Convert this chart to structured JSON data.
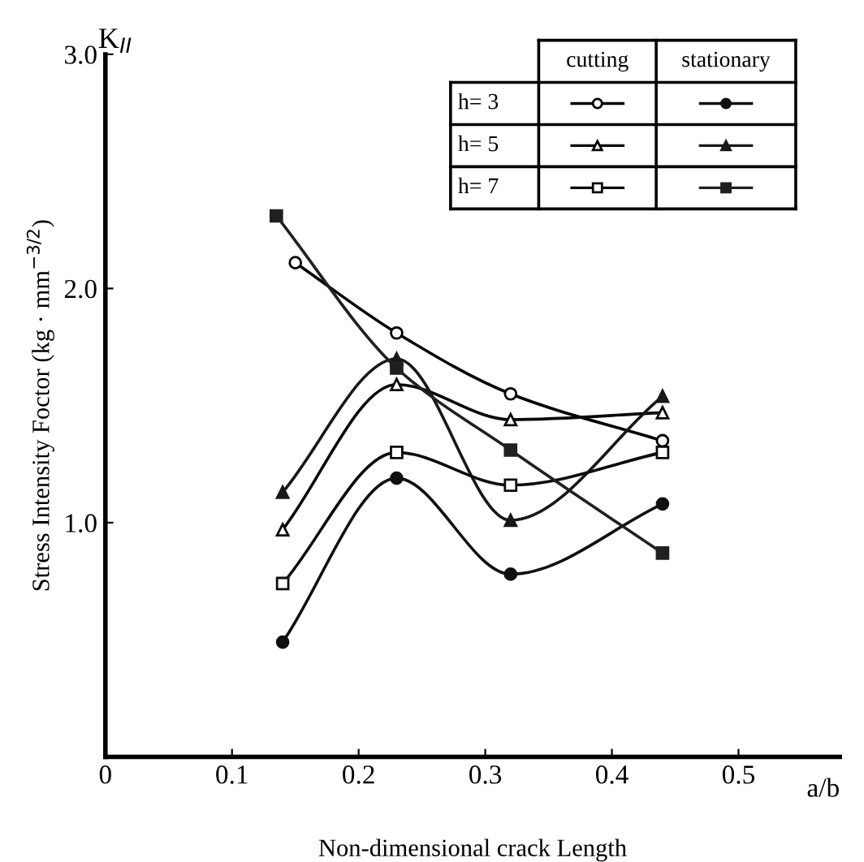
{
  "chart_data": {
    "type": "line",
    "xlabel": "Non-dimensional crack Length",
    "ylabel": "Stress Intensity Foctor (kg · mm$^{−3/2}$)",
    "annotations": [
      "K$_{II}$",
      "a/b",
      "cutting",
      "stationary",
      "h= 3",
      "h= 5",
      "h= 7"
    ],
    "xlim": [
      0,
      0.58
    ],
    "ylim": [
      0,
      3.0
    ],
    "xticks": [
      0,
      0.1,
      0.2,
      0.3,
      0.4,
      0.5
    ],
    "yticks": [
      {
        "value": 1.0,
        "label": "1.0"
      },
      {
        "value": 2.0,
        "label": "2.0"
      },
      {
        "value": 3.0,
        "label": "3.0"
      }
    ],
    "grid": false,
    "series": [
      {
        "color": "#000000",
        "marker": "circle",
        "x": [
          0.15,
          0.23,
          0.32,
          0.44
        ],
        "values": [
          2.11,
          1.81,
          1.55,
          1.35
        ]
      },
      {
        "color": "#101010",
        "marker": "circle",
        "x": [
          0.14,
          0.23,
          0.32,
          0.44
        ],
        "values": [
          0.49,
          1.19,
          0.78,
          1.08
        ]
      },
      {
        "color": "#080808",
        "marker": "triangle",
        "x": [
          0.14,
          0.23,
          0.32,
          0.44
        ],
        "values": [
          0.97,
          1.59,
          1.44,
          1.47
        ]
      },
      {
        "color": "#181818",
        "marker": "triangle",
        "x": [
          0.14,
          0.23,
          0.32,
          0.44
        ],
        "values": [
          1.13,
          1.7,
          1.01,
          1.54
        ]
      },
      {
        "color": "#0c0c0c",
        "marker": "square",
        "x": [
          0.14,
          0.23,
          0.32,
          0.44
        ],
        "values": [
          0.74,
          1.3,
          1.16,
          1.3
        ]
      },
      {
        "color": "#202020",
        "marker": "square",
        "x": [
          0.135,
          0.23,
          0.32,
          0.44
        ],
        "values": [
          2.31,
          1.66,
          1.31,
          0.87
        ]
      }
    ]
  }
}
